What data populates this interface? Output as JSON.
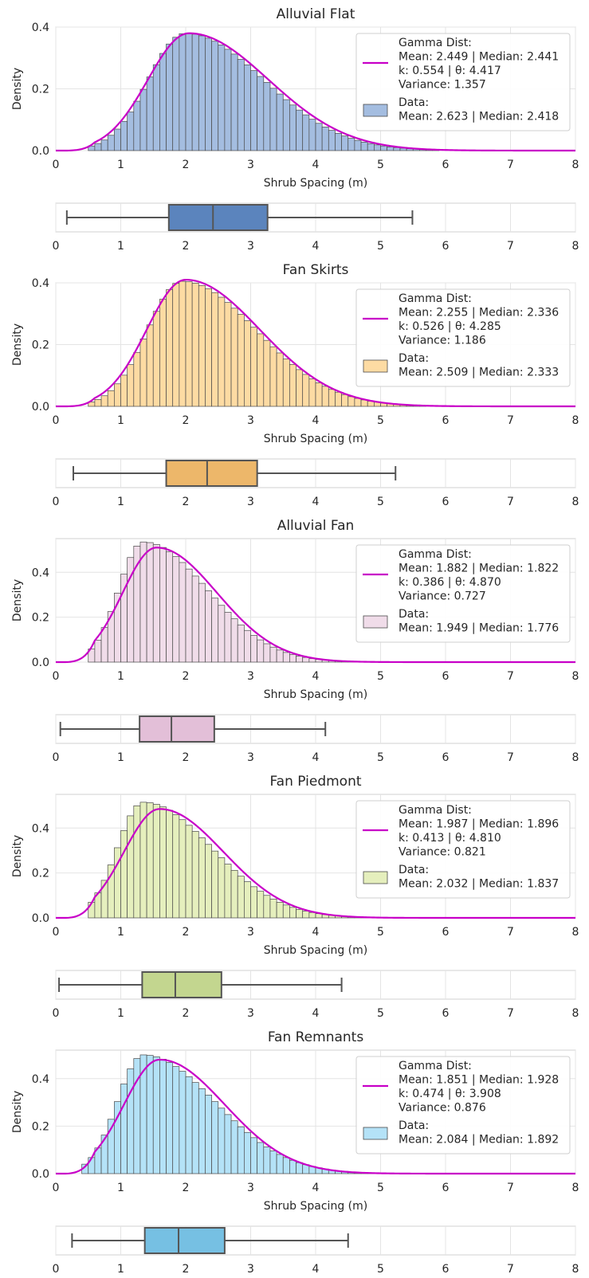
{
  "figure": {
    "xlabel": "Shrub Spacing (m)",
    "ylabel": "Density",
    "xlim": [
      0,
      8
    ],
    "xticks": [
      0,
      1,
      2,
      3,
      4,
      5,
      6,
      7,
      8
    ],
    "legend_position": "upper right",
    "grid": true,
    "fit_line_color": "#c800c8"
  },
  "chart_data": [
    {
      "type": "histogram",
      "title": "Alluvial Flat",
      "bar_color": "#a4bde0",
      "box_color": "#5b84bd",
      "ylim": [
        0,
        0.4
      ],
      "yticks": [
        0.0,
        0.2,
        0.4
      ],
      "hist": {
        "bin_width": 0.1,
        "bin_start": 0.5,
        "mode": 2.0,
        "peak": 0.38,
        "sigma_left": 0.57,
        "sigma_right": 1.2
      },
      "fit": {
        "mode": 2.05,
        "peak": 0.38,
        "sigma_left": 0.63,
        "sigma_right": 1.22
      },
      "box": {
        "whisker_low": 0.17,
        "q1": 1.74,
        "median": 2.42,
        "q3": 3.26,
        "whisker_high": 5.49
      },
      "legend": {
        "fit_lines": [
          "Gamma Dist:",
          "Mean: 2.449 | Median: 2.441",
          "k: 0.554 | θ: 4.417",
          "Variance: 1.357"
        ],
        "data_lines": [
          "Data:",
          "Mean: 2.623 | Median: 2.418"
        ]
      }
    },
    {
      "type": "histogram",
      "title": "Fan Skirts",
      "bar_color": "#fddba3",
      "box_color": "#edb76a",
      "ylim": [
        0,
        0.4
      ],
      "yticks": [
        0.0,
        0.2,
        0.4
      ],
      "hist": {
        "bin_width": 0.1,
        "bin_start": 0.5,
        "mode": 1.95,
        "peak": 0.405,
        "sigma_left": 0.54,
        "sigma_right": 1.15
      },
      "fit": {
        "mode": 2.0,
        "peak": 0.41,
        "sigma_left": 0.6,
        "sigma_right": 1.14
      },
      "box": {
        "whisker_low": 0.27,
        "q1": 1.7,
        "median": 2.33,
        "q3": 3.1,
        "whisker_high": 5.23
      },
      "legend": {
        "fit_lines": [
          "Gamma Dist:",
          "Mean: 2.255 | Median: 2.336",
          "k: 0.526 | θ: 4.285",
          "Variance: 1.186"
        ],
        "data_lines": [
          "Data:",
          "Mean: 2.509 | Median: 2.333"
        ]
      }
    },
    {
      "type": "histogram",
      "title": "Alluvial Fan",
      "bar_color": "#f0dce9",
      "box_color": "#e3bfd8",
      "ylim": [
        0,
        0.55
      ],
      "yticks": [
        0.0,
        0.2,
        0.4
      ],
      "hist": {
        "bin_width": 0.1,
        "bin_start": 0.5,
        "mode": 1.35,
        "peak": 0.535,
        "sigma_left": 0.38,
        "sigma_right": 0.98
      },
      "fit": {
        "mode": 1.55,
        "peak": 0.51,
        "sigma_left": 0.52,
        "sigma_right": 0.93
      },
      "box": {
        "whisker_low": 0.07,
        "q1": 1.29,
        "median": 1.78,
        "q3": 2.44,
        "whisker_high": 4.15
      },
      "legend": {
        "fit_lines": [
          "Gamma Dist:",
          "Mean: 1.882 | Median: 1.822",
          "k: 0.386 | θ: 4.870",
          "Variance: 0.727"
        ],
        "data_lines": [
          "Data:",
          "Mean: 1.949 | Median: 1.776"
        ]
      }
    },
    {
      "type": "histogram",
      "title": "Fan Piedmont",
      "bar_color": "#e5efbd",
      "box_color": "#c3d68f",
      "ylim": [
        0,
        0.55
      ],
      "yticks": [
        0.0,
        0.2,
        0.4
      ],
      "hist": {
        "bin_width": 0.1,
        "bin_start": 0.5,
        "mode": 1.35,
        "peak": 0.515,
        "sigma_left": 0.4,
        "sigma_right": 1.05
      },
      "fit": {
        "mode": 1.6,
        "peak": 0.485,
        "sigma_left": 0.55,
        "sigma_right": 0.98
      },
      "box": {
        "whisker_low": 0.05,
        "q1": 1.33,
        "median": 1.84,
        "q3": 2.55,
        "whisker_high": 4.4
      },
      "legend": {
        "fit_lines": [
          "Gamma Dist:",
          "Mean: 1.987 | Median: 1.896",
          "k: 0.413 | θ: 4.810",
          "Variance: 0.821"
        ],
        "data_lines": [
          "Data:",
          "Mean: 2.032 | Median: 1.837"
        ]
      }
    },
    {
      "type": "histogram",
      "title": "Fan Remnants",
      "bar_color": "#b4e2f7",
      "box_color": "#76c0e3",
      "ylim": [
        0,
        0.52
      ],
      "yticks": [
        0.0,
        0.2,
        0.4
      ],
      "hist": {
        "bin_width": 0.1,
        "bin_start": 0.4,
        "mode": 1.35,
        "peak": 0.5,
        "sigma_left": 0.4,
        "sigma_right": 1.1
      },
      "fit": {
        "mode": 1.6,
        "peak": 0.48,
        "sigma_left": 0.55,
        "sigma_right": 1.0
      },
      "box": {
        "whisker_low": 0.25,
        "q1": 1.37,
        "median": 1.89,
        "q3": 2.6,
        "whisker_high": 4.5
      },
      "legend": {
        "fit_lines": [
          "Gamma Dist:",
          "Mean: 1.851 | Median: 1.928",
          "k: 0.474 | θ: 3.908",
          "Variance: 0.876"
        ],
        "data_lines": [
          "Data:",
          "Mean: 2.084 | Median: 1.892"
        ]
      }
    }
  ]
}
